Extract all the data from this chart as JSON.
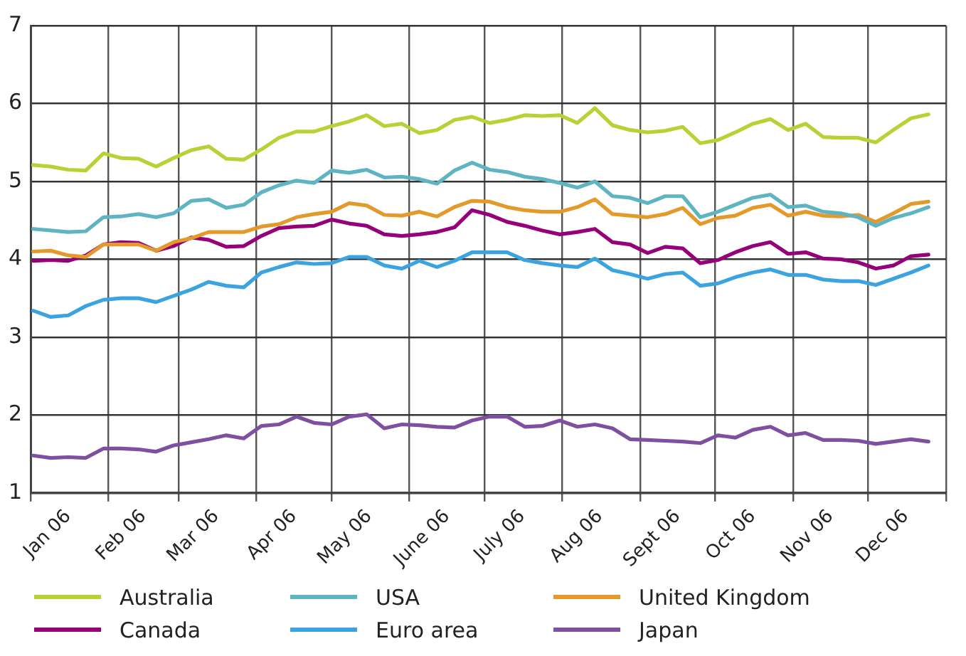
{
  "chart_data": {
    "type": "line",
    "x": [
      "2006-01-02",
      "2006-01-09",
      "2006-01-16",
      "2006-01-23",
      "2006-01-30",
      "2006-02-06",
      "2006-02-13",
      "2006-02-20",
      "2006-02-27",
      "2006-03-06",
      "2006-03-13",
      "2006-03-20",
      "2006-03-27",
      "2006-04-03",
      "2006-04-10",
      "2006-04-17",
      "2006-04-24",
      "2006-05-01",
      "2006-05-08",
      "2006-05-15",
      "2006-05-22",
      "2006-05-29",
      "2006-06-05",
      "2006-06-12",
      "2006-06-19",
      "2006-06-26",
      "2006-07-03",
      "2006-07-10",
      "2006-07-17",
      "2006-07-24",
      "2006-07-31",
      "2006-08-07",
      "2006-08-14",
      "2006-08-21",
      "2006-08-28",
      "2006-09-04",
      "2006-09-11",
      "2006-09-18",
      "2006-09-25",
      "2006-10-02",
      "2006-10-09",
      "2006-10-16",
      "2006-10-23",
      "2006-10-30",
      "2006-11-06",
      "2006-11-13",
      "2006-11-20",
      "2006-11-27",
      "2006-12-04",
      "2006-12-11",
      "2006-12-18",
      "2006-12-25"
    ],
    "series": [
      {
        "name": "Australia",
        "color": "#b5d334",
        "values": [
          5.21,
          5.19,
          5.15,
          5.14,
          5.36,
          5.3,
          5.29,
          5.19,
          5.3,
          5.4,
          5.45,
          5.29,
          5.28,
          5.41,
          5.56,
          5.64,
          5.64,
          5.71,
          5.77,
          5.85,
          5.71,
          5.74,
          5.62,
          5.66,
          5.79,
          5.83,
          5.75,
          5.79,
          5.85,
          5.84,
          5.85,
          5.75,
          5.94,
          5.72,
          5.66,
          5.63,
          5.65,
          5.7,
          5.49,
          5.53,
          5.63,
          5.74,
          5.8,
          5.66,
          5.74,
          5.57,
          5.56,
          5.56,
          5.5,
          5.66,
          5.81,
          5.86
        ]
      },
      {
        "name": "USA",
        "color": "#5fb4c1",
        "values": [
          4.39,
          4.37,
          4.35,
          4.36,
          4.54,
          4.55,
          4.58,
          4.54,
          4.59,
          4.75,
          4.77,
          4.66,
          4.7,
          4.86,
          4.95,
          5.01,
          4.98,
          5.14,
          5.11,
          5.15,
          5.05,
          5.06,
          5.03,
          4.97,
          5.14,
          5.24,
          5.15,
          5.12,
          5.06,
          5.03,
          4.98,
          4.92,
          5.0,
          4.81,
          4.79,
          4.72,
          4.81,
          4.81,
          4.54,
          4.61,
          4.7,
          4.79,
          4.83,
          4.67,
          4.69,
          4.61,
          4.59,
          4.54,
          4.43,
          4.53,
          4.59,
          4.67
        ]
      },
      {
        "name": "United Kingdom",
        "color": "#e39a2a",
        "values": [
          4.1,
          4.11,
          4.05,
          4.03,
          4.19,
          4.19,
          4.19,
          4.11,
          4.22,
          4.27,
          4.35,
          4.35,
          4.35,
          4.42,
          4.45,
          4.54,
          4.58,
          4.61,
          4.72,
          4.69,
          4.57,
          4.56,
          4.61,
          4.55,
          4.67,
          4.75,
          4.74,
          4.67,
          4.63,
          4.61,
          4.61,
          4.67,
          4.77,
          4.58,
          4.56,
          4.54,
          4.58,
          4.66,
          4.45,
          4.53,
          4.56,
          4.66,
          4.7,
          4.56,
          4.61,
          4.56,
          4.55,
          4.57,
          4.48,
          4.59,
          4.71,
          4.74
        ]
      },
      {
        "name": "Canada",
        "color": "#960078",
        "values": [
          3.98,
          3.99,
          3.98,
          4.05,
          4.19,
          4.22,
          4.21,
          4.11,
          4.17,
          4.28,
          4.25,
          4.16,
          4.17,
          4.3,
          4.4,
          4.42,
          4.43,
          4.51,
          4.46,
          4.43,
          4.32,
          4.3,
          4.32,
          4.35,
          4.41,
          4.63,
          4.57,
          4.48,
          4.43,
          4.37,
          4.32,
          4.35,
          4.39,
          4.22,
          4.19,
          4.08,
          4.16,
          4.14,
          3.95,
          3.99,
          4.09,
          4.17,
          4.22,
          4.07,
          4.09,
          4.01,
          4.0,
          3.96,
          3.88,
          3.92,
          4.04,
          4.06
        ]
      },
      {
        "name": "Euro area",
        "color": "#3aa3e0",
        "values": [
          3.34,
          3.26,
          3.28,
          3.4,
          3.48,
          3.5,
          3.5,
          3.45,
          3.53,
          3.61,
          3.71,
          3.66,
          3.64,
          3.83,
          3.9,
          3.96,
          3.94,
          3.95,
          4.03,
          4.03,
          3.92,
          3.88,
          3.98,
          3.9,
          3.98,
          4.09,
          4.09,
          4.09,
          3.99,
          3.95,
          3.92,
          3.9,
          4.01,
          3.86,
          3.81,
          3.75,
          3.81,
          3.83,
          3.66,
          3.69,
          3.77,
          3.83,
          3.87,
          3.8,
          3.8,
          3.74,
          3.72,
          3.72,
          3.67,
          3.75,
          3.83,
          3.92
        ]
      },
      {
        "name": "Japan",
        "color": "#7f4fa0",
        "values": [
          1.48,
          1.45,
          1.46,
          1.45,
          1.57,
          1.57,
          1.56,
          1.53,
          1.61,
          1.65,
          1.69,
          1.74,
          1.7,
          1.86,
          1.88,
          1.98,
          1.9,
          1.88,
          1.98,
          2.01,
          1.83,
          1.88,
          1.87,
          1.85,
          1.84,
          1.93,
          1.98,
          1.98,
          1.85,
          1.86,
          1.93,
          1.85,
          1.88,
          1.83,
          1.69,
          1.68,
          1.67,
          1.66,
          1.64,
          1.74,
          1.71,
          1.81,
          1.85,
          1.74,
          1.77,
          1.68,
          1.68,
          1.67,
          1.63,
          1.66,
          1.69,
          1.66
        ]
      }
    ],
    "xlim": [
      "2006-01-01",
      "2007-01-01"
    ],
    "xticks": [
      {
        "value": "2006-01-01",
        "label": null
      },
      {
        "value": "2006-01-16",
        "label": "Jan 06"
      },
      {
        "value": "2006-02-01",
        "label": null
      },
      {
        "value": "2006-02-15",
        "label": "Feb 06"
      },
      {
        "value": "2006-03-01",
        "label": null
      },
      {
        "value": "2006-03-16",
        "label": "Mar 06"
      },
      {
        "value": "2006-04-01",
        "label": null
      },
      {
        "value": "2006-04-16",
        "label": "Apr 06"
      },
      {
        "value": "2006-05-01",
        "label": null
      },
      {
        "value": "2006-05-16",
        "label": "May 06"
      },
      {
        "value": "2006-06-01",
        "label": null
      },
      {
        "value": "2006-06-16",
        "label": "June 06"
      },
      {
        "value": "2006-07-01",
        "label": null
      },
      {
        "value": "2006-07-16",
        "label": "July 06"
      },
      {
        "value": "2006-08-01",
        "label": null
      },
      {
        "value": "2006-08-16",
        "label": "Aug 06"
      },
      {
        "value": "2006-09-01",
        "label": null
      },
      {
        "value": "2006-09-16",
        "label": "Sept 06"
      },
      {
        "value": "2006-10-01",
        "label": null
      },
      {
        "value": "2006-10-16",
        "label": "Oct 06"
      },
      {
        "value": "2006-11-01",
        "label": null
      },
      {
        "value": "2006-11-16",
        "label": "Nov 06"
      },
      {
        "value": "2006-12-01",
        "label": null
      },
      {
        "value": "2006-12-16",
        "label": "Dec 06"
      },
      {
        "value": "2007-01-01",
        "label": null
      }
    ],
    "ylim": [
      1,
      7
    ],
    "yticks": [
      1,
      2,
      3,
      4,
      5,
      6,
      7
    ],
    "grid": true,
    "legend": "bottom",
    "marker": "none",
    "line_style": "solid"
  }
}
